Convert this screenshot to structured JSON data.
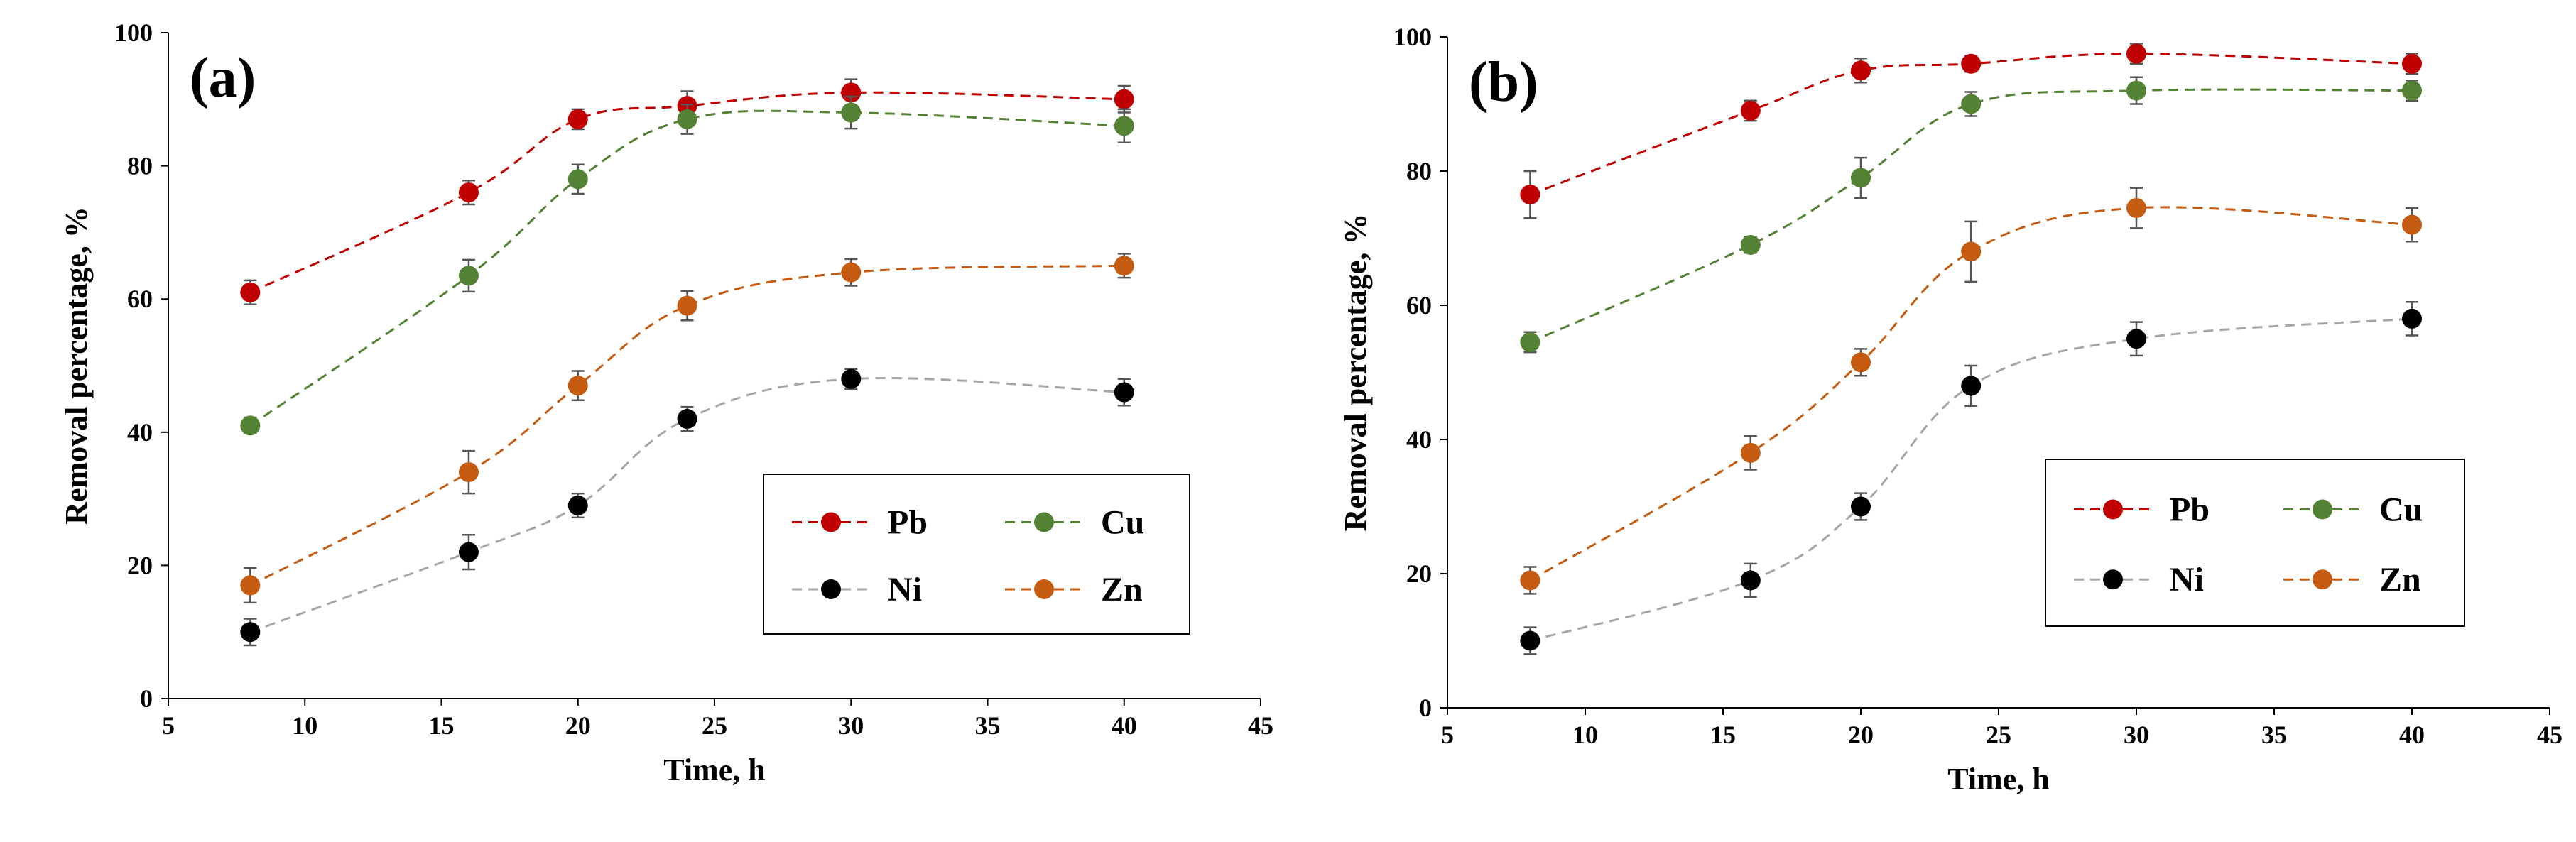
{
  "chart_data": [
    {
      "panel": "(a)",
      "type": "line",
      "xlabel": "Time, h",
      "ylabel": "Removal percentage, %",
      "xlim": [
        5,
        45
      ],
      "ylim": [
        0,
        100
      ],
      "xticks": [
        5,
        10,
        15,
        20,
        25,
        30,
        35,
        40,
        45
      ],
      "yticks": [
        0,
        20,
        40,
        60,
        80,
        100
      ],
      "x": [
        8,
        16,
        20,
        24,
        30,
        40
      ],
      "series": [
        {
          "name": "Pb",
          "color": "#C00000",
          "values": [
            61,
            76,
            87,
            89,
            91,
            90
          ],
          "errors": [
            1.8,
            1.8,
            1.5,
            2.2,
            2.0,
            2.0
          ]
        },
        {
          "name": "Cu",
          "color": "#548235",
          "values": [
            41,
            63.5,
            78,
            87,
            88,
            86
          ],
          "errors": [
            1.2,
            2.4,
            2.2,
            2.2,
            2.4,
            2.5
          ]
        },
        {
          "name": "Ni",
          "color": "#000000",
          "values": [
            10,
            22,
            29,
            42,
            48,
            46
          ],
          "errors": [
            2.0,
            2.6,
            1.8,
            1.8,
            1.5,
            2.0
          ]
        },
        {
          "name": "Zn",
          "color": "#C55A11",
          "values": [
            17,
            34,
            47,
            59,
            64,
            65
          ],
          "errors": [
            2.6,
            3.2,
            2.2,
            2.2,
            2.0,
            1.8
          ]
        }
      ],
      "legend_position": "bottom-right"
    },
    {
      "panel": "(b)",
      "type": "line",
      "xlabel": "Time, h",
      "ylabel": "Removal percentage, %",
      "xlim": [
        5,
        45
      ],
      "ylim": [
        0,
        100
      ],
      "xticks": [
        5,
        10,
        15,
        20,
        25,
        30,
        35,
        40,
        45
      ],
      "yticks": [
        0,
        20,
        40,
        60,
        80,
        100
      ],
      "x": [
        8,
        16,
        20,
        24,
        30,
        40
      ],
      "series": [
        {
          "name": "Pb",
          "color": "#C00000",
          "values": [
            76.5,
            89,
            95,
            96,
            97.5,
            96
          ],
          "errors": [
            3.5,
            1.5,
            1.8,
            1.2,
            1.5,
            1.5
          ]
        },
        {
          "name": "Cu",
          "color": "#548235",
          "values": [
            54.5,
            69,
            79,
            90,
            92,
            92
          ],
          "errors": [
            1.5,
            1.2,
            3.0,
            1.8,
            2.0,
            1.5
          ]
        },
        {
          "name": "Ni",
          "color": "#000000",
          "values": [
            10,
            19,
            30,
            48,
            55,
            58
          ],
          "errors": [
            2.0,
            2.5,
            2.0,
            3.0,
            2.5,
            2.5
          ]
        },
        {
          "name": "Zn",
          "color": "#C55A11",
          "values": [
            19,
            38,
            51.5,
            68,
            74.5,
            72
          ],
          "errors": [
            2.0,
            2.5,
            2.0,
            4.5,
            3.0,
            2.5
          ]
        }
      ],
      "legend_position": "bottom-right"
    }
  ]
}
